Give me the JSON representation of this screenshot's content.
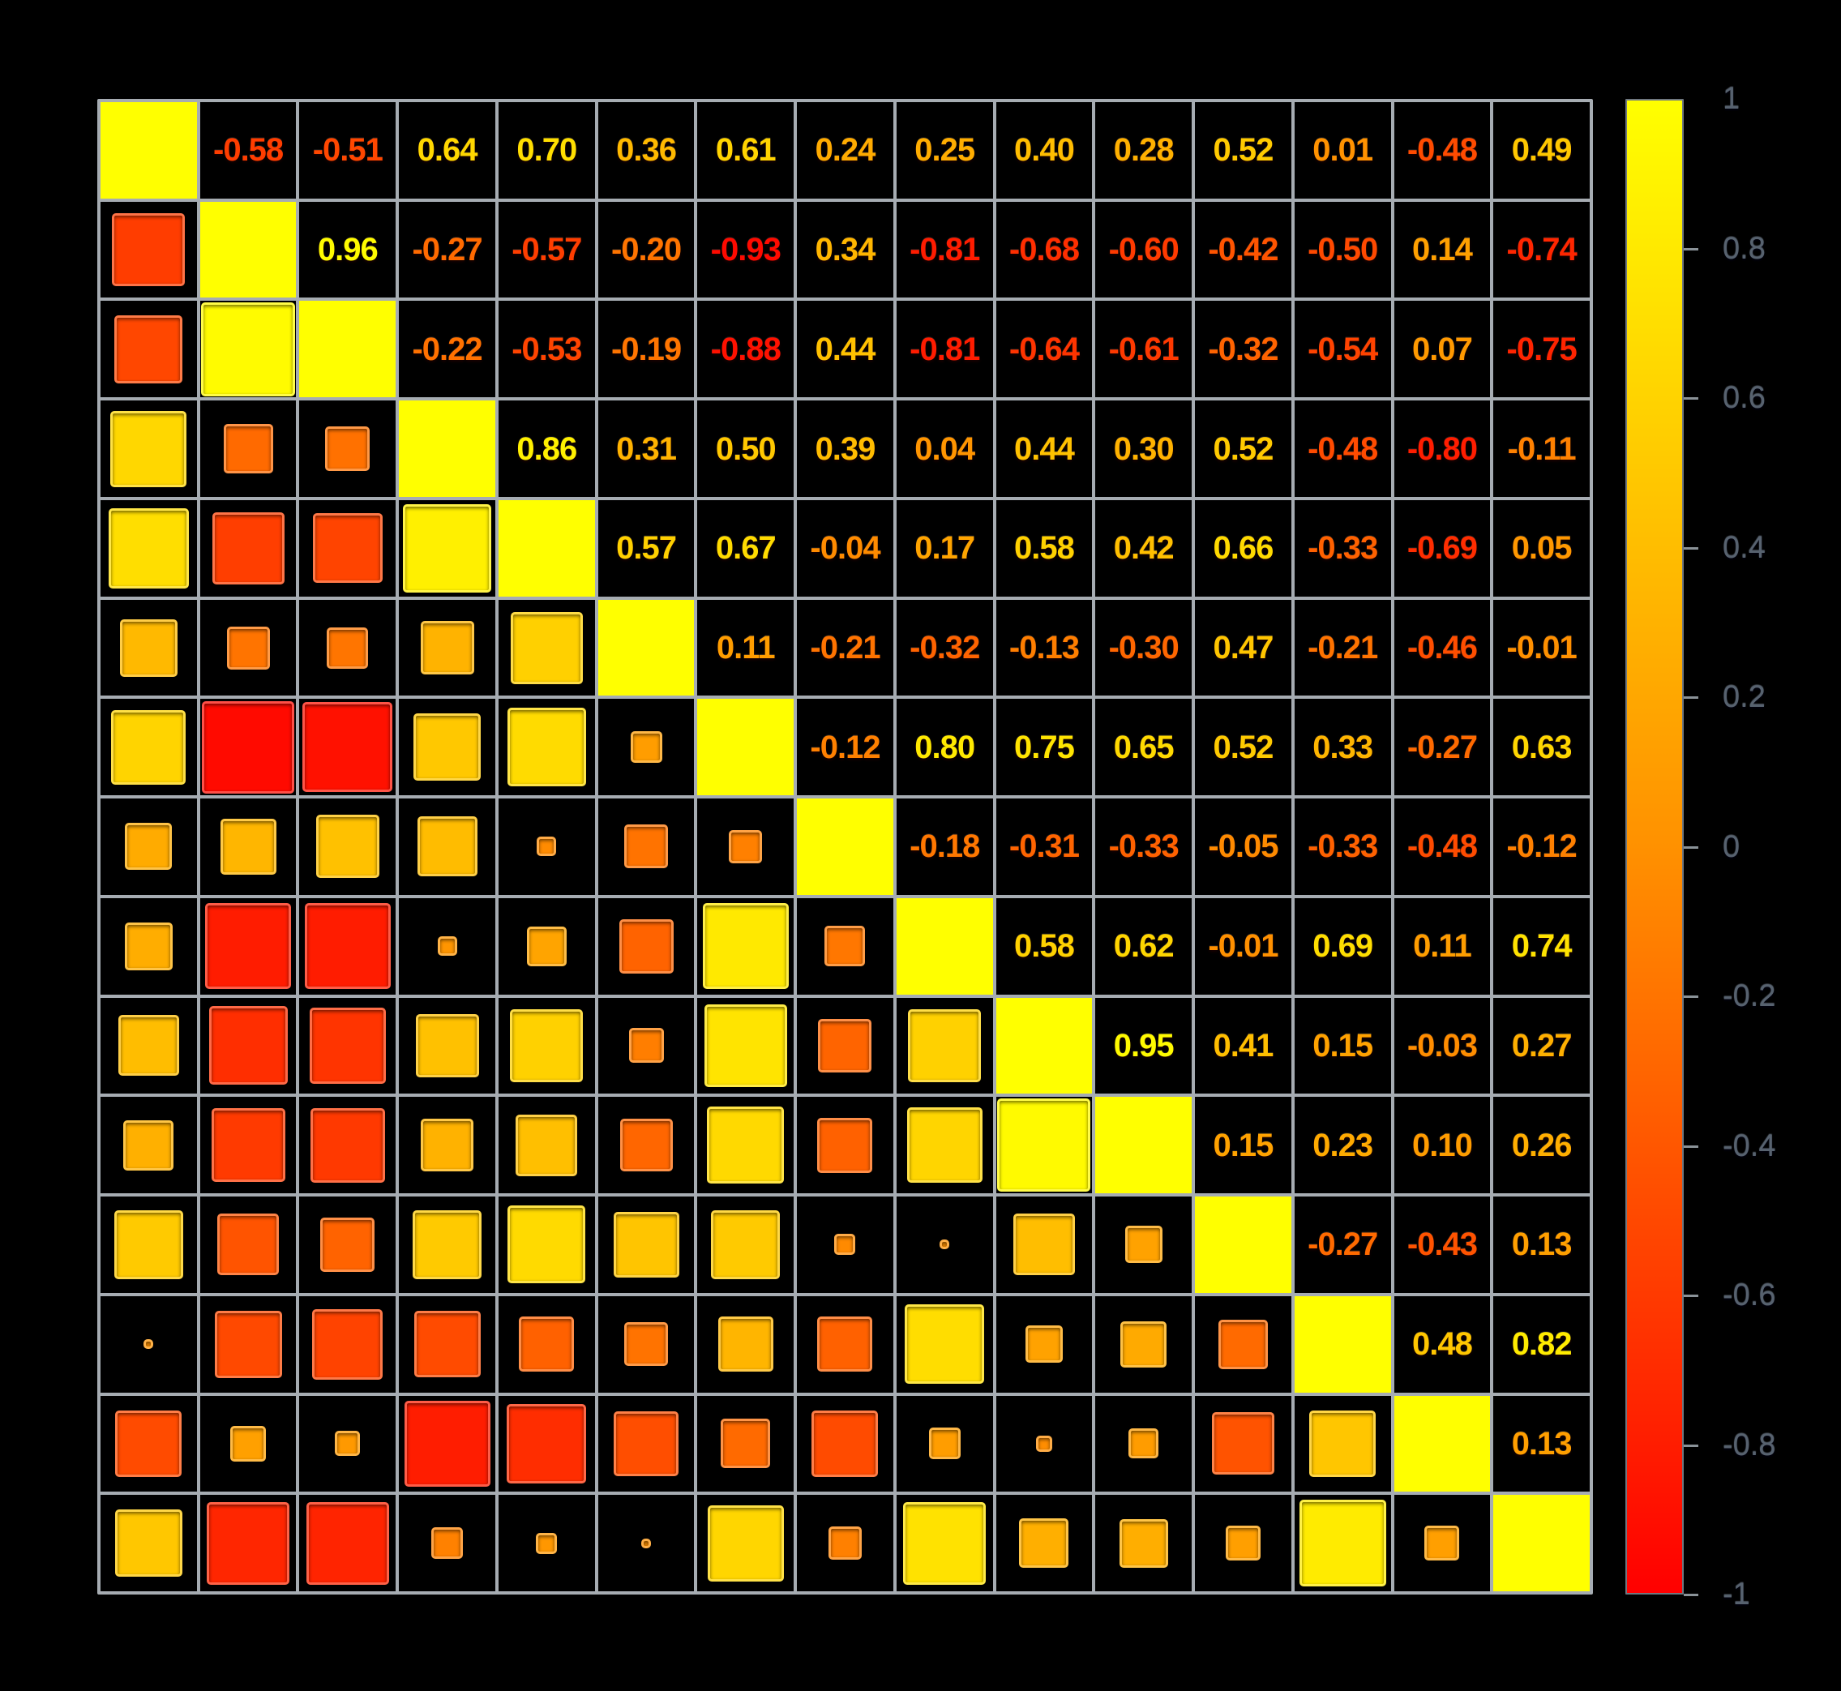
{
  "figure": {
    "background_color": "#000000",
    "gridline_color": "#a6acb2",
    "title": "",
    "variable_labels_shown": false
  },
  "colorbar": {
    "orientation": "vertical",
    "position": "right",
    "min": -1,
    "max": 1,
    "tick_labels": [
      "1",
      "0.8",
      "0.6",
      "0.4",
      "0.2",
      "0",
      "-0.2",
      "-0.4",
      "-0.6",
      "-0.8",
      "-1"
    ],
    "tick_values": [
      1,
      0.8,
      0.6,
      0.4,
      0.2,
      0,
      -0.2,
      -0.4,
      -0.6,
      -0.8,
      -1
    ],
    "color_top": "#FFFF00",
    "color_middle": "#FF9100",
    "color_bottom": "#FF0000",
    "label_color": "#57626f"
  },
  "chart_data": {
    "type": "heatmap",
    "subtype": "correlation-matrix",
    "n_variables": 15,
    "diagonal_value": 1,
    "upper_triangle_display": "numbers",
    "lower_triangle_display": "squares sized by sqrt(|r|) and colored by r",
    "value_range": [
      -1,
      1
    ],
    "palette_stops": {
      "neg1": "#FF0000",
      "zero": "#FF9100",
      "pos1": "#FFFF00"
    },
    "upper_triangle_values": [
      [
        -0.58,
        -0.51,
        0.64,
        0.7,
        0.36,
        0.61,
        0.24,
        0.25,
        0.4,
        0.28,
        0.52,
        0.01,
        -0.48,
        0.49
      ],
      [
        0.96,
        -0.27,
        -0.57,
        -0.2,
        -0.93,
        0.34,
        -0.81,
        -0.68,
        -0.6,
        -0.42,
        -0.5,
        0.14,
        -0.74
      ],
      [
        -0.22,
        -0.53,
        -0.19,
        -0.88,
        0.44,
        -0.81,
        -0.64,
        -0.61,
        -0.32,
        -0.54,
        0.07,
        -0.75
      ],
      [
        0.86,
        0.31,
        0.5,
        0.39,
        0.04,
        0.44,
        0.3,
        0.52,
        -0.48,
        -0.8,
        -0.11
      ],
      [
        0.57,
        0.67,
        -0.04,
        0.17,
        0.58,
        0.42,
        0.66,
        -0.33,
        -0.69,
        0.05
      ],
      [
        0.11,
        -0.21,
        -0.32,
        -0.13,
        -0.3,
        0.47,
        -0.21,
        -0.46,
        -0.01
      ],
      [
        -0.12,
        0.8,
        0.75,
        0.65,
        0.52,
        0.33,
        -0.27,
        0.63
      ],
      [
        -0.18,
        -0.31,
        -0.33,
        -0.05,
        -0.33,
        -0.48,
        -0.12
      ],
      [
        0.58,
        0.62,
        -0.01,
        0.69,
        0.11,
        0.74
      ],
      [
        0.95,
        0.41,
        0.15,
        -0.03,
        0.27
      ],
      [
        0.15,
        0.23,
        0.1,
        0.26
      ],
      [
        -0.27,
        -0.43,
        0.13
      ],
      [
        0.48,
        0.82
      ],
      [
        0.13
      ]
    ]
  }
}
